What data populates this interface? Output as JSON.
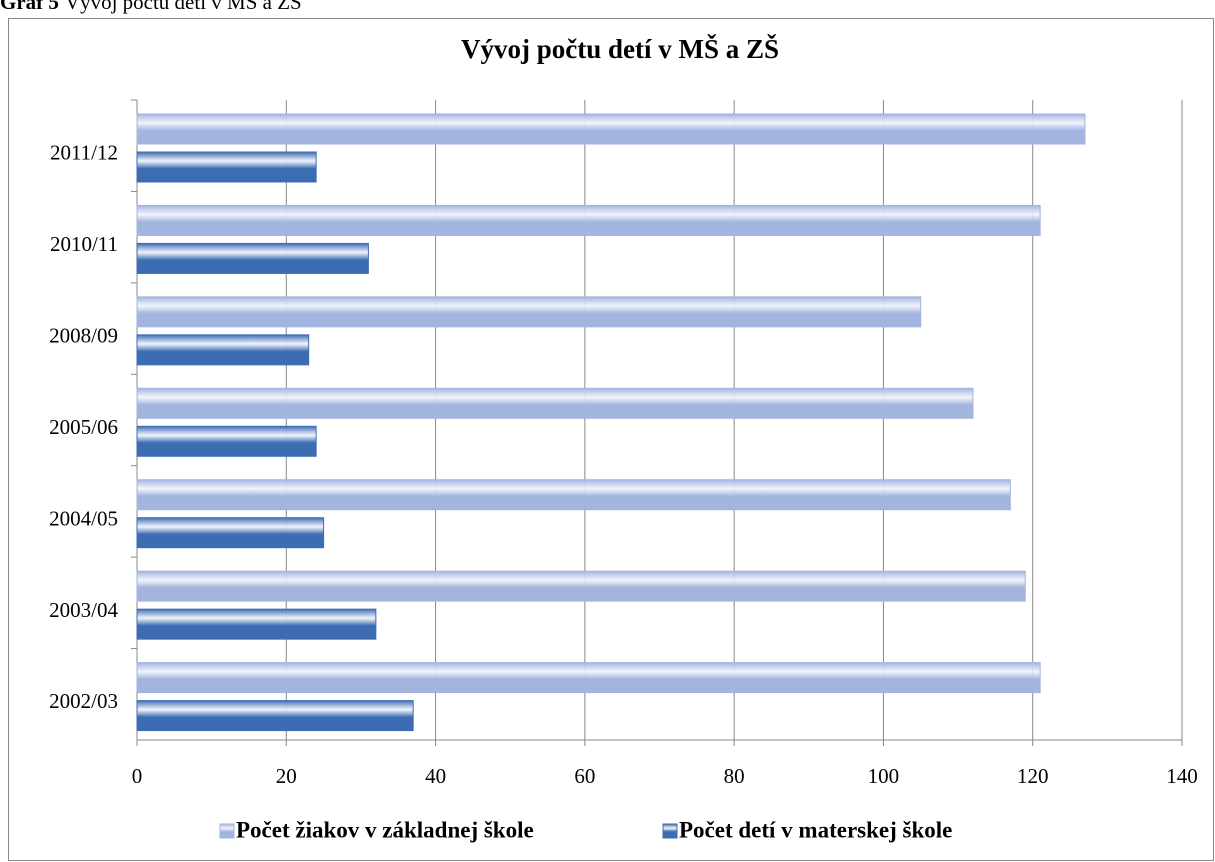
{
  "caption": {
    "label": "Graf 5",
    "text": "Vývoj počtu detí v MŠ a ZŠ"
  },
  "chart_data": {
    "type": "barh",
    "title": "Vývoj počtu detí v MŠ a ZŠ",
    "categories": [
      "2002/03",
      "2003/04",
      "2004/05",
      "2005/06",
      "2008/09",
      "2010/11",
      "2011/12"
    ],
    "series": [
      {
        "name": "Počet žiakov v základnej škole",
        "color": "#a3b4de",
        "values": [
          121,
          119,
          117,
          112,
          105,
          121,
          127
        ]
      },
      {
        "name": "Počet detí v materskej škole",
        "color": "#3c6db3",
        "values": [
          37,
          32,
          25,
          24,
          23,
          31,
          24
        ]
      }
    ],
    "xlim": [
      0,
      140
    ],
    "xticks": [
      0,
      20,
      40,
      60,
      80,
      100,
      120,
      140
    ],
    "grid": true,
    "legend": "bottom"
  }
}
